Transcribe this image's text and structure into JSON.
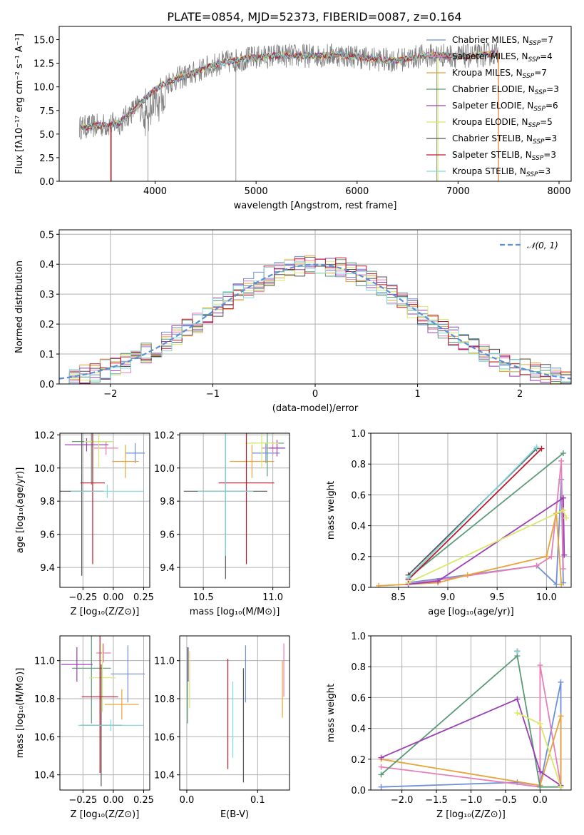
{
  "figure": {
    "title": "PLATE=0854, MJD=52373, FIBERID=0087, z=0.164"
  },
  "colors": {
    "chabrier_miles": "#6f8fd6",
    "salpeter_miles": "#e67fb8",
    "kroupa_miles": "#e8a33a",
    "chabrier_elodie": "#5a9a76",
    "salpeter_elodie": "#9b3fb5",
    "kroupa_elodie": "#d8e86a",
    "chabrier_stelib": "#555555",
    "salpeter_stelib": "#c0182b",
    "kroupa_stelib": "#7fd8dc",
    "data_gray": "#808080",
    "gauss": "#5b8ed6",
    "orange_line": "#e67a2a"
  },
  "chart_data": [
    {
      "id": "spectrum",
      "type": "line",
      "title": "PLATE=0854, MJD=52373, FIBERID=0087, z=0.164",
      "xlabel": "wavelength [Angstrom, rest frame]",
      "ylabel": "Flux [fλ10⁻¹⁷ erg cm⁻² s⁻¹ A⁻¹]",
      "xlim": [
        3050,
        8120
      ],
      "ylim": [
        0,
        16.4
      ],
      "xticks": [
        4000,
        5000,
        6000,
        7000,
        8000
      ],
      "yticks": [
        0.0,
        2.5,
        5.0,
        7.5,
        10.0,
        12.5,
        15.0
      ],
      "legend": [
        "Chabrier MILES, N_SSP=7",
        "Salpeter MILES, N_SSP=4",
        "Kroupa MILES, N_SSP=7",
        "Chabrier ELODIE, N_SSP=3",
        "Salpeter ELODIE, N_SSP=6",
        "Kroupa ELODIE, N_SSP=5",
        "Chabrier STELIB, N_SSP=3",
        "Salpeter STELIB, N_SSP=3",
        "Kroupa STELIB, N_SSP=3"
      ],
      "legend_placement": "right",
      "continuum": [
        [
          3250,
          5.7
        ],
        [
          3350,
          5.8
        ],
        [
          3450,
          5.9
        ],
        [
          3550,
          6.0
        ],
        [
          3650,
          6.2
        ],
        [
          3750,
          7.2
        ],
        [
          3850,
          8.2
        ],
        [
          3950,
          9.3
        ],
        [
          4050,
          10.1
        ],
        [
          4150,
          10.6
        ],
        [
          4250,
          11.0
        ],
        [
          4350,
          11.3
        ],
        [
          4450,
          11.8
        ],
        [
          4550,
          12.2
        ],
        [
          4650,
          12.5
        ],
        [
          4750,
          12.7
        ],
        [
          4850,
          12.9
        ],
        [
          5000,
          13.1
        ],
        [
          5200,
          13.3
        ],
        [
          5400,
          13.3
        ],
        [
          5600,
          13.3
        ],
        [
          5800,
          13.4
        ],
        [
          6000,
          13.2
        ],
        [
          6200,
          12.9
        ],
        [
          6400,
          12.8
        ],
        [
          6600,
          13.2
        ],
        [
          6800,
          13.4
        ],
        [
          7000,
          13.2
        ],
        [
          7200,
          13.3
        ],
        [
          7400,
          13.6
        ]
      ]
    },
    {
      "id": "residuals",
      "type": "histogram",
      "xlabel": "(data-model)/error",
      "ylabel": "Normed distribution",
      "xlim": [
        -2.5,
        2.5
      ],
      "ylim": [
        0,
        0.515
      ],
      "xticks": [
        -2,
        -1,
        0,
        1,
        2
      ],
      "yticks": [
        0.0,
        0.1,
        0.2,
        0.3,
        0.4,
        0.5
      ],
      "legend": [
        "𝒩(0, 1)"
      ],
      "legend_placement": "upper right",
      "bin_width": 0.1,
      "bin_start": -2.5
    },
    {
      "id": "age-vs-Z",
      "type": "scatter",
      "xlabel": "Z [log₁₀(Z/Z⊙)]",
      "ylabel": "age  [log₁₀(age/yr)]",
      "xlim": [
        -0.44,
        0.3
      ],
      "ylim": [
        9.28,
        10.21
      ],
      "xticks": [
        -0.25,
        0.0,
        0.25
      ],
      "xticklabels": [
        "−0.25",
        "0.00",
        "0.25"
      ],
      "yticks": [
        9.4,
        9.6,
        9.8,
        10.0,
        10.2
      ],
      "points": [
        {
          "c": "chabrier_miles",
          "x": 0.18,
          "y": 10.09,
          "xe": 0.08,
          "ye": 0.06
        },
        {
          "c": "salpeter_miles",
          "x": -0.06,
          "y": 10.12,
          "xe": 0.1,
          "ye": 0.04
        },
        {
          "c": "kroupa_miles",
          "x": 0.1,
          "y": 10.04,
          "xe": 0.11,
          "ye": 0.1
        },
        {
          "c": "chabrier_elodie",
          "x": -0.18,
          "y": 10.16,
          "xe": 0.16,
          "ye": 0.26
        },
        {
          "c": "salpeter_elodie",
          "x": -0.22,
          "y": 10.14,
          "xe": 0.18,
          "ye": 0.04
        },
        {
          "c": "kroupa_elodie",
          "x": -0.12,
          "y": 10.16,
          "xe": 0.12,
          "ye": 0.16
        },
        {
          "c": "chabrier_stelib",
          "x": -0.26,
          "y": 9.86,
          "xe": 0.18,
          "ye": 0.51
        },
        {
          "c": "salpeter_stelib",
          "x": -0.17,
          "y": 9.91,
          "xe": 0.1,
          "ye": 0.49
        },
        {
          "c": "kroupa_stelib",
          "x": -0.05,
          "y": 9.86,
          "xe": 0.3,
          "ye": 0.04
        }
      ]
    },
    {
      "id": "age-vs-mass",
      "type": "scatter",
      "xlabel": "mass [log₁₀(M/M⊙)]",
      "ylabel": "",
      "xlim": [
        10.33,
        11.12
      ],
      "ylim": [
        9.28,
        10.21
      ],
      "xticks": [
        10.5,
        11.0
      ],
      "xticklabels": [
        "10.5",
        "11.0"
      ],
      "yticks": [
        9.4,
        9.6,
        9.8,
        10.0,
        10.2
      ],
      "points": [
        {
          "c": "chabrier_miles",
          "x": 10.95,
          "y": 10.09,
          "xe": 0.1,
          "ye": 0.06
        },
        {
          "c": "salpeter_miles",
          "x": 11.0,
          "y": 10.12,
          "xe": 0.08,
          "ye": 0.04
        },
        {
          "c": "kroupa_miles",
          "x": 10.85,
          "y": 10.04,
          "xe": 0.16,
          "ye": 0.1
        },
        {
          "c": "chabrier_elodie",
          "x": 10.96,
          "y": 10.15,
          "xe": 0.12,
          "ye": 0.2
        },
        {
          "c": "salpeter_elodie",
          "x": 11.03,
          "y": 10.12,
          "xe": 0.06,
          "ye": 0.05
        },
        {
          "c": "kroupa_elodie",
          "x": 10.92,
          "y": 10.15,
          "xe": 0.12,
          "ye": 0.15
        },
        {
          "c": "chabrier_stelib",
          "x": 10.66,
          "y": 9.86,
          "xe": 0.3,
          "ye": 0.53
        },
        {
          "c": "salpeter_stelib",
          "x": 10.81,
          "y": 9.91,
          "xe": 0.2,
          "ye": 0.49
        },
        {
          "c": "kroupa_stelib",
          "x": 10.66,
          "y": 9.86,
          "xe": 0.2,
          "ye": 0.39
        }
      ]
    },
    {
      "id": "weight-vs-age",
      "type": "line",
      "xlabel": "age  [log₁₀(age/yr)]",
      "ylabel": "mass weight",
      "xlim": [
        8.22,
        10.25
      ],
      "ylim": [
        0,
        1.0
      ],
      "xticks": [
        8.5,
        9.0,
        9.5,
        10.0
      ],
      "xticklabels": [
        "8.5",
        "9.0",
        "9.5",
        "10.0"
      ],
      "yticks": [
        0.0,
        0.2,
        0.4,
        0.6,
        0.8,
        1.0
      ],
      "series": [
        {
          "c": "chabrier_miles",
          "x": [
            8.6,
            9.9,
            10.1,
            10.15,
            10.17
          ],
          "y": [
            0.03,
            0.14,
            0.02,
            0.7,
            0.03
          ]
        },
        {
          "c": "salpeter_miles",
          "x": [
            8.6,
            9.9,
            10.05,
            10.15,
            10.17
          ],
          "y": [
            0.02,
            0.14,
            0.2,
            0.82,
            0.12
          ]
        },
        {
          "c": "kroupa_miles",
          "x": [
            8.3,
            8.6,
            8.9,
            9.2,
            10.0,
            10.1,
            10.15
          ],
          "y": [
            0.01,
            0.02,
            0.03,
            0.08,
            0.2,
            0.48,
            0.02
          ]
        },
        {
          "c": "chabrier_elodie",
          "x": [
            8.6,
            10.17
          ],
          "y": [
            0.06,
            0.87
          ]
        },
        {
          "c": "salpeter_elodie",
          "x": [
            8.6,
            8.9,
            10.17,
            10.18
          ],
          "y": [
            0.02,
            0.04,
            0.58,
            0.21
          ]
        },
        {
          "c": "kroupa_elodie",
          "x": [
            8.6,
            10.17,
            10.2
          ],
          "y": [
            0.03,
            0.5,
            0.45
          ]
        },
        {
          "c": "chabrier_stelib",
          "x": [
            8.6,
            9.9
          ],
          "y": [
            0.08,
            0.9
          ]
        },
        {
          "c": "salpeter_stelib",
          "x": [
            8.6,
            9.95
          ],
          "y": [
            0.05,
            0.9
          ]
        },
        {
          "c": "kroupa_stelib",
          "x": [
            8.6,
            9.9
          ],
          "y": [
            0.06,
            0.91
          ]
        }
      ]
    },
    {
      "id": "mass-vs-Z",
      "type": "scatter",
      "xlabel": "Z [log₁₀(Z/Z⊙)]",
      "ylabel": "mass [log₁₀(M/M⊙)]",
      "xlim": [
        -0.44,
        0.3
      ],
      "ylim": [
        10.32,
        11.13
      ],
      "xticks": [
        -0.25,
        0.0,
        0.25
      ],
      "xticklabels": [
        "−0.25",
        "0.00",
        "0.25"
      ],
      "yticks": [
        10.4,
        10.6,
        10.8,
        11.0
      ],
      "points": [
        {
          "c": "chabrier_miles",
          "x": 0.12,
          "y": 10.93,
          "xe": 0.14,
          "ye": 0.15
        },
        {
          "c": "salpeter_miles",
          "x": -0.08,
          "y": 11.04,
          "xe": 0.06,
          "ye": 0.05
        },
        {
          "c": "kroupa_miles",
          "x": 0.07,
          "y": 10.77,
          "xe": 0.14,
          "ye": 0.08
        },
        {
          "c": "chabrier_elodie",
          "x": -0.18,
          "y": 10.96,
          "xe": 0.16,
          "ye": 0.29
        },
        {
          "c": "salpeter_elodie",
          "x": -0.3,
          "y": 10.98,
          "xe": 0.13,
          "ye": 0.09
        },
        {
          "c": "kroupa_elodie",
          "x": -0.09,
          "y": 10.91,
          "xe": 0.11,
          "ye": 0.18
        },
        {
          "c": "chabrier_stelib",
          "x": -0.1,
          "y": 10.66,
          "xe": 0.17,
          "ye": 0.32
        },
        {
          "c": "salpeter_stelib",
          "x": -0.11,
          "y": 10.81,
          "xe": 0.15,
          "ye": 0.4
        },
        {
          "c": "kroupa_stelib",
          "x": -0.02,
          "y": 10.66,
          "xe": 0.27,
          "ye": 0.03
        }
      ]
    },
    {
      "id": "mass-vs-ebv",
      "type": "scatter",
      "xlabel": "E(B-V)",
      "ylabel": "",
      "xlim": [
        -0.01,
        0.145
      ],
      "ylim": [
        10.32,
        11.13
      ],
      "xticks": [
        0.0,
        0.1
      ],
      "xticklabels": [
        "0.0",
        "0.1"
      ],
      "yticks": [
        10.4,
        10.6,
        10.8,
        11.0
      ],
      "points": [
        {
          "c": "chabrier_miles",
          "x": 0.083,
          "y": 10.93,
          "xe": 0,
          "ye": 0.15
        },
        {
          "c": "salpeter_miles",
          "x": 0.137,
          "y": 10.95,
          "xe": 0,
          "ye": 0.14
        },
        {
          "c": "kroupa_miles",
          "x": 0.135,
          "y": 10.85,
          "xe": 0,
          "ye": 0.15
        },
        {
          "c": "chabrier_elodie",
          "x": 0.001,
          "y": 10.87,
          "xe": 0,
          "ye": 0.2
        },
        {
          "c": "salpeter_elodie",
          "x": 0.002,
          "y": 10.98,
          "xe": 0,
          "ye": 0.09
        },
        {
          "c": "kroupa_elodie",
          "x": 0.004,
          "y": 10.9,
          "xe": 0,
          "ye": 0.15
        },
        {
          "c": "chabrier_stelib",
          "x": 0.08,
          "y": 10.66,
          "xe": 0,
          "ye": 0.3
        },
        {
          "c": "salpeter_stelib",
          "x": 0.058,
          "y": 10.72,
          "xe": 0,
          "ye": 0.29
        },
        {
          "c": "kroupa_stelib",
          "x": 0.065,
          "y": 10.69,
          "xe": 0,
          "ye": 0.2
        }
      ]
    },
    {
      "id": "weight-vs-Z",
      "type": "line",
      "xlabel": "Z [log₁₀(Z/Z⊙)]",
      "ylabel": "mass weight",
      "xlim": [
        -2.45,
        0.45
      ],
      "ylim": [
        0,
        1.0
      ],
      "xticks": [
        -2.0,
        -1.5,
        -1.0,
        -0.5,
        0.0
      ],
      "xticklabels": [
        "−2.0",
        "−1.5",
        "−1.0",
        "−0.5",
        "0.0"
      ],
      "yticks": [
        0.0,
        0.2,
        0.4,
        0.6,
        0.8,
        1.0
      ],
      "series": [
        {
          "c": "chabrier_miles",
          "x": [
            -2.3,
            -0.33,
            0.0,
            0.3,
            0.3
          ],
          "y": [
            0.02,
            0.05,
            0.03,
            0.7,
            0.02
          ]
        },
        {
          "c": "salpeter_miles",
          "x": [
            -2.3,
            0.0,
            0.0,
            0.3
          ],
          "y": [
            0.15,
            0.02,
            0.81,
            0.03
          ]
        },
        {
          "c": "kroupa_miles",
          "x": [
            -2.3,
            0.0,
            0.3,
            0.3
          ],
          "y": [
            0.2,
            0.03,
            0.48,
            0.02
          ]
        },
        {
          "c": "chabrier_elodie",
          "x": [
            -2.3,
            -0.33,
            0.0,
            0.3
          ],
          "y": [
            0.1,
            0.87,
            0.02,
            0.02
          ]
        },
        {
          "c": "salpeter_elodie",
          "x": [
            -2.3,
            -0.33,
            0.0,
            0.3
          ],
          "y": [
            0.21,
            0.59,
            0.12,
            0.03
          ]
        },
        {
          "c": "kroupa_elodie",
          "x": [
            -0.33,
            0.0,
            0.3
          ],
          "y": [
            0.5,
            0.43,
            0.02
          ]
        },
        {
          "c": "chabrier_stelib",
          "x": [
            -0.33,
            -0.33
          ],
          "y": [
            0.9,
            0.9
          ]
        },
        {
          "c": "salpeter_stelib",
          "x": [
            -0.33,
            -0.33
          ],
          "y": [
            0.9,
            0.9
          ]
        },
        {
          "c": "kroupa_stelib",
          "x": [
            -0.33,
            -0.33
          ],
          "y": [
            0.9,
            0.9
          ]
        }
      ]
    }
  ]
}
